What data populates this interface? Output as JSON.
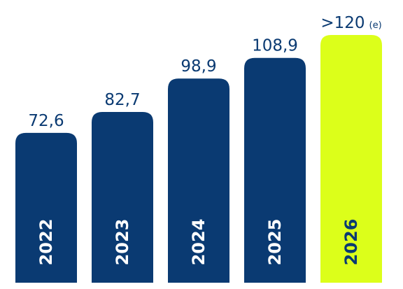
{
  "chart_data": {
    "type": "bar",
    "categories": [
      "2022",
      "2023",
      "2024",
      "2025",
      "2026"
    ],
    "values": [
      72.6,
      82.7,
      98.9,
      108.9,
      120
    ],
    "value_labels": [
      "72,6",
      "82,7",
      "98,9",
      "108,9",
      ">120"
    ],
    "estimate_marker": "(e)",
    "estimated_index": 4,
    "title": "",
    "xlabel": "",
    "ylabel": "",
    "grid": false,
    "legend": "none",
    "colors": {
      "bar": "#0a3a72",
      "bar_estimate": "#dcff1a",
      "value_text": "#0a3a72",
      "year_text_on_dark": "#ffffff",
      "year_text_on_estimate": "#0a3a72"
    }
  }
}
